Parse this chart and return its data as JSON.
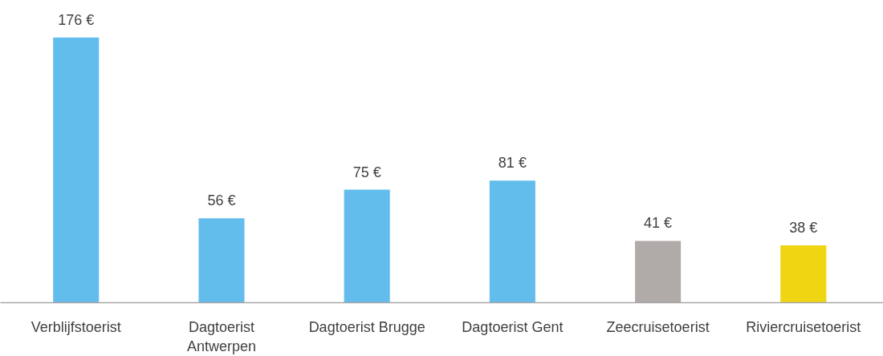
{
  "chart_data": {
    "type": "bar",
    "categories": [
      "Verblijfstoerist",
      "Dagtoerist Antwerpen",
      "Dagtoerist Brugge",
      "Dagtoerist Gent",
      "Zeecruisetoerist",
      "Riviercruisetoerist"
    ],
    "values": [
      176,
      56,
      75,
      81,
      41,
      38
    ],
    "colors": [
      "#63bdec",
      "#63bdec",
      "#63bdec",
      "#63bdec",
      "#b0aaa8",
      "#f0d512"
    ],
    "value_labels": [
      "176 €",
      "56 €",
      "75 €",
      "81 €",
      "41 €",
      "38 €"
    ],
    "grid": false
  }
}
